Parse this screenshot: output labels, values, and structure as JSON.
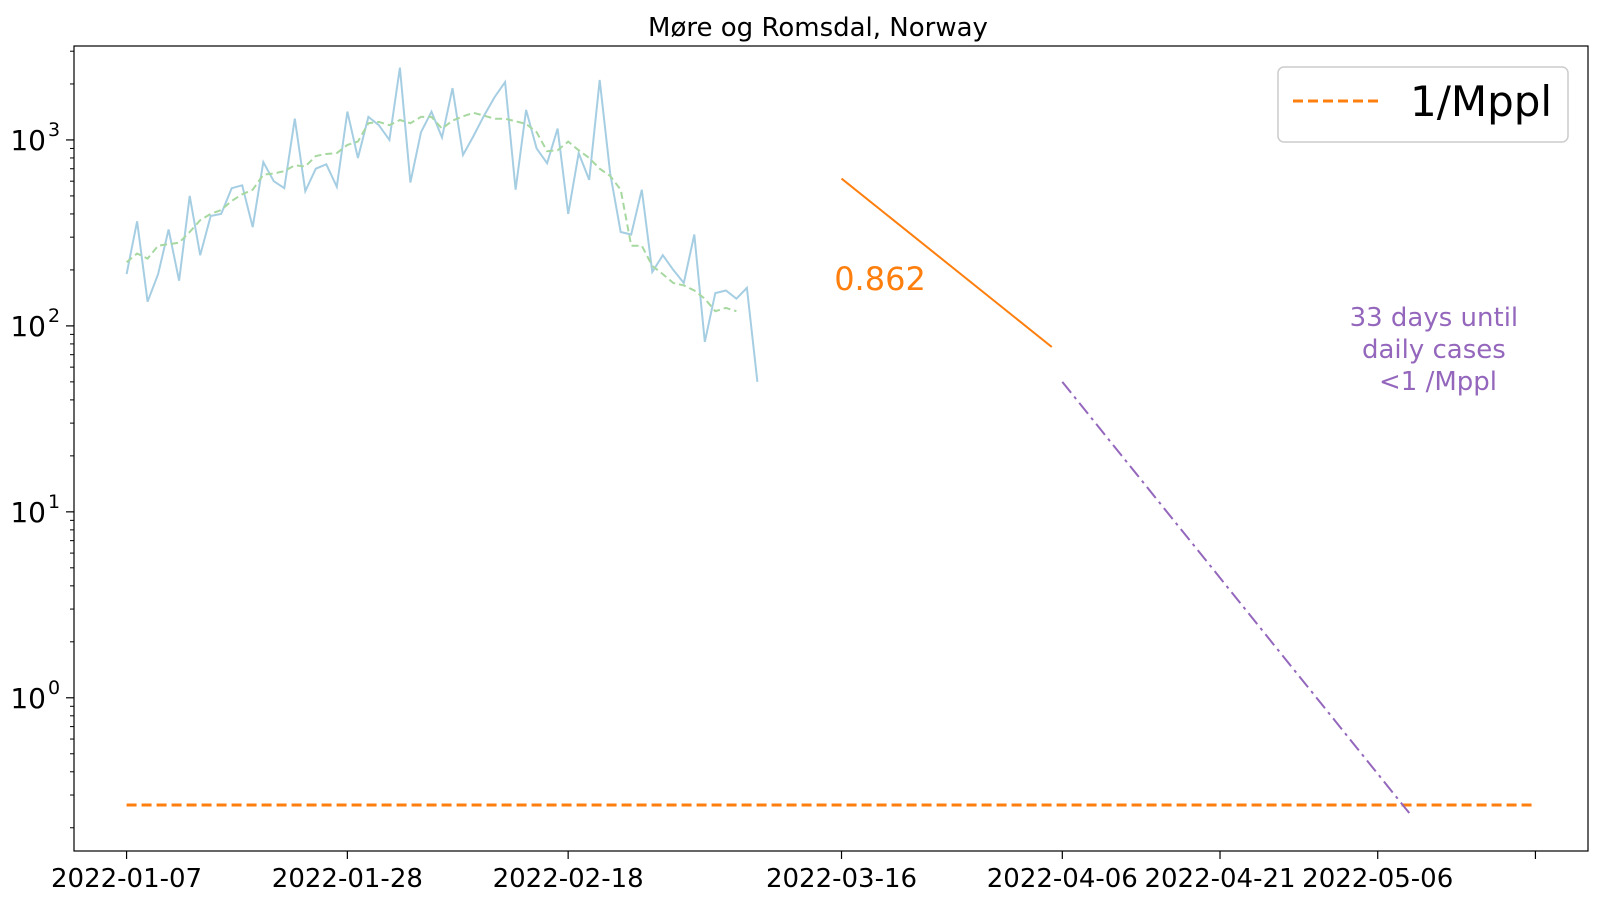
{
  "chart_data": {
    "type": "line",
    "title": "Møre og Romsdal, Norway",
    "xlabel": "",
    "ylabel": "",
    "y_scale": "log",
    "ylim": [
      0.15,
      3200
    ],
    "xlim": [
      "2022-01-02",
      "2022-05-26"
    ],
    "x_ticks": [
      "2022-01-07",
      "2022-01-28",
      "2022-02-18",
      "2022-03-16",
      "2022-04-06",
      "2022-04-21",
      "2022-05-06",
      "2022-05-21"
    ],
    "x_tick_labels": [
      "2022-01-07",
      "2022-01-28",
      "2022-02-18",
      "2022-03-16",
      "2022-04-06",
      "2022-04-21",
      "2022-05-06",
      ""
    ],
    "y_ticks": [
      1,
      10,
      100,
      1000
    ],
    "y_tick_labels": [
      "10^0",
      "10^1",
      "10^2",
      "10^3"
    ],
    "grid": false,
    "legend": {
      "position": "top-right",
      "entries": [
        "1/Mppl"
      ]
    },
    "colors": {
      "daily": "#a6cee3",
      "average": "#a6d8a0",
      "fit": "#ff7f0e",
      "threshold": "#ff7f0e",
      "projection": "#9467bd"
    },
    "series": [
      {
        "role": "daily",
        "x": [
          "2022-01-07",
          "2022-01-08",
          "2022-01-09",
          "2022-01-10",
          "2022-01-11",
          "2022-01-12",
          "2022-01-13",
          "2022-01-14",
          "2022-01-15",
          "2022-01-16",
          "2022-01-17",
          "2022-01-18",
          "2022-01-19",
          "2022-01-20",
          "2022-01-21",
          "2022-01-22",
          "2022-01-23",
          "2022-01-24",
          "2022-01-25",
          "2022-01-26",
          "2022-01-27",
          "2022-01-28",
          "2022-01-29",
          "2022-01-30",
          "2022-01-31",
          "2022-02-01",
          "2022-02-02",
          "2022-02-03",
          "2022-02-04",
          "2022-02-05",
          "2022-02-06",
          "2022-02-07",
          "2022-02-08",
          "2022-02-09",
          "2022-02-10",
          "2022-02-11",
          "2022-02-12",
          "2022-02-13",
          "2022-02-14",
          "2022-02-15",
          "2022-02-16",
          "2022-02-17",
          "2022-02-18",
          "2022-02-19",
          "2022-02-20",
          "2022-02-21",
          "2022-02-22",
          "2022-02-23",
          "2022-02-24",
          "2022-02-25",
          "2022-02-26",
          "2022-02-27",
          "2022-02-28",
          "2022-03-01",
          "2022-03-02",
          "2022-03-03",
          "2022-03-04",
          "2022-03-05",
          "2022-03-06",
          "2022-03-07",
          "2022-03-08",
          "2022-03-09",
          "2022-03-10",
          "2022-03-11",
          "2022-03-12",
          "2022-03-13",
          "2022-03-14",
          "2022-03-15",
          "2022-03-16",
          "2022-03-17",
          "2022-03-18",
          "2022-03-19",
          "2022-03-20",
          "2022-03-21",
          "2022-03-22",
          "2022-03-23",
          "2022-03-24",
          "2022-03-25",
          "2022-03-26",
          "2022-03-27",
          "2022-03-28",
          "2022-03-29",
          "2022-03-30",
          "2022-03-31",
          "2022-04-01",
          "2022-04-02",
          "2022-04-03",
          "2022-04-04",
          "2022-04-05"
        ],
        "values": [
          190,
          365,
          135,
          190,
          330,
          175,
          500,
          240,
          390,
          400,
          550,
          570,
          340,
          760,
          600,
          550,
          1300,
          530,
          700,
          740,
          560,
          1420,
          800,
          1330,
          1200,
          1000,
          2450,
          590,
          1100,
          1420,
          1030,
          1900,
          830,
          1050,
          1350,
          1700,
          2050,
          540,
          1450,
          900,
          750,
          1150,
          400,
          850,
          610,
          2100,
          660,
          320,
          310,
          540,
          195,
          240,
          200,
          170,
          310,
          82,
          150,
          155,
          140,
          160,
          50,
          "null",
          "null",
          "null",
          "null",
          "null",
          "null",
          "null",
          "null",
          "null",
          "null",
          "null",
          "null",
          "null",
          "null",
          "null",
          "null",
          "null",
          "null",
          "null",
          "null",
          "null",
          "null",
          "null",
          "null",
          "null",
          "null",
          "null",
          "null"
        ]
      },
      {
        "role": "average",
        "x_start": "2022-01-07",
        "values": [
          220,
          245,
          230,
          270,
          275,
          280,
          320,
          370,
          400,
          420,
          470,
          510,
          540,
          650,
          660,
          680,
          730,
          720,
          820,
          840,
          850,
          940,
          980,
          1230,
          1250,
          1200,
          1280,
          1230,
          1330,
          1330,
          1150,
          1270,
          1340,
          1400,
          1350,
          1300,
          1300,
          1260,
          1220,
          1100,
          870,
          880,
          980,
          880,
          800,
          700,
          640,
          540,
          270,
          270,
          210,
          190,
          170,
          165,
          155,
          140,
          120,
          125,
          120
        ]
      },
      {
        "role": "fit",
        "label": "0.862",
        "x": [
          "2022-03-16",
          "2022-04-05"
        ],
        "values": [
          620,
          77
        ]
      },
      {
        "role": "threshold",
        "name": "1/Mppl",
        "x": [
          "2022-01-07",
          "2022-05-21"
        ],
        "values": [
          0.265,
          0.265
        ]
      },
      {
        "role": "projection",
        "x": [
          "2022-04-06",
          "2022-05-09"
        ],
        "values": [
          50,
          0.24
        ]
      }
    ],
    "annotations": {
      "fit_label": "0.862",
      "projection_lines": [
        "33 days until",
        "daily cases",
        "<1 /Mppl"
      ]
    }
  }
}
